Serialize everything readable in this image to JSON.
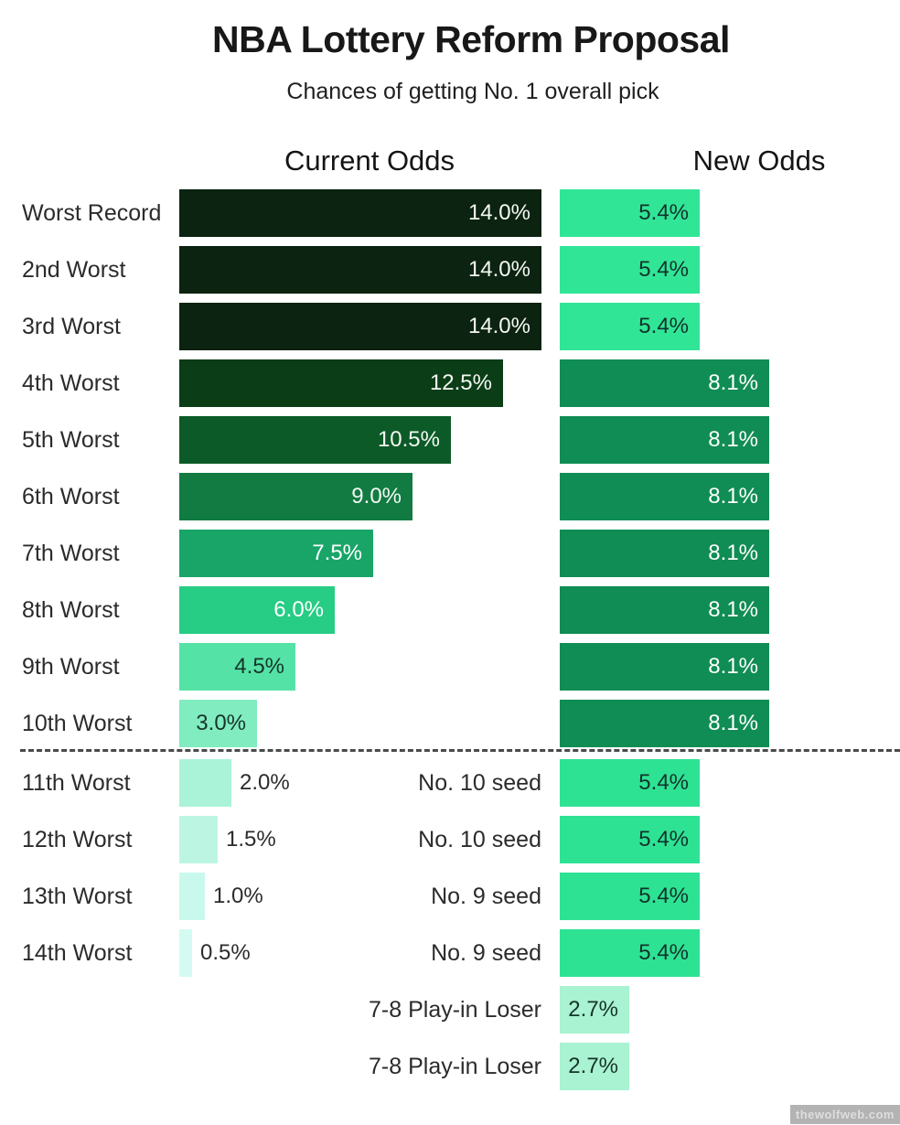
{
  "page": {
    "title": "NBA Lottery Reform Proposal",
    "subtitle": "Chances of getting No. 1 overall pick",
    "watermark": "thewolfweb.com"
  },
  "columns": {
    "current_header": "Current Odds",
    "new_header": "New Odds"
  },
  "chart_data": {
    "type": "bar",
    "orientation": "horizontal",
    "title": "NBA Lottery Reform Proposal",
    "subtitle": "Chances of getting No. 1 overall pick",
    "value_unit": "%",
    "value_labels_on_bars": true,
    "grid": false,
    "legend_position": "column headers",
    "x_range_pct": [
      0,
      14
    ],
    "divider_after_index": 9,
    "categories": [
      "Worst Record",
      "2nd Worst",
      "3rd Worst",
      "4th Worst",
      "5th Worst",
      "6th Worst",
      "7th Worst",
      "8th Worst",
      "9th Worst",
      "10th Worst",
      "11th Worst",
      "12th Worst",
      "13th Worst",
      "14th Worst",
      "7-8 Play-in Loser",
      "7-8 Play-in Loser"
    ],
    "series": [
      {
        "name": "Current Odds",
        "values": [
          14.0,
          14.0,
          14.0,
          12.5,
          10.5,
          9.0,
          7.5,
          6.0,
          4.5,
          3.0,
          2.0,
          1.5,
          1.0,
          0.5,
          null,
          null
        ]
      },
      {
        "name": "New Odds",
        "values": [
          5.4,
          5.4,
          5.4,
          8.1,
          8.1,
          8.1,
          8.1,
          8.1,
          8.1,
          8.1,
          5.4,
          5.4,
          5.4,
          5.4,
          2.7,
          2.7
        ]
      }
    ],
    "new_odds_slot_labels": [
      null,
      null,
      null,
      null,
      null,
      null,
      null,
      null,
      null,
      null,
      "No. 10 seed",
      "No. 10 seed",
      "No. 9 seed",
      "No. 9 seed",
      "7-8 Play-in Loser",
      "7-8 Play-in Loser"
    ],
    "rows": [
      {
        "label": "Worst Record",
        "mid": "",
        "current": {
          "value": 14.0,
          "text": "14.0%",
          "color": "#0b2310",
          "text_color": "#f4f8f3",
          "label_inside": true
        },
        "proposed": {
          "value": 5.4,
          "text": "5.4%",
          "color": "#31e597",
          "text_color": "#12322a"
        }
      },
      {
        "label": "2nd Worst",
        "mid": "",
        "current": {
          "value": 14.0,
          "text": "14.0%",
          "color": "#0b2310",
          "text_color": "#f4f8f3",
          "label_inside": true
        },
        "proposed": {
          "value": 5.4,
          "text": "5.4%",
          "color": "#31e597",
          "text_color": "#12322a"
        }
      },
      {
        "label": "3rd Worst",
        "mid": "",
        "current": {
          "value": 14.0,
          "text": "14.0%",
          "color": "#0b2310",
          "text_color": "#f4f8f3",
          "label_inside": true
        },
        "proposed": {
          "value": 5.4,
          "text": "5.4%",
          "color": "#31e597",
          "text_color": "#12322a"
        }
      },
      {
        "label": "4th Worst",
        "mid": "",
        "current": {
          "value": 12.5,
          "text": "12.5%",
          "color": "#0b3d17",
          "text_color": "#f4f8f3",
          "label_inside": true
        },
        "proposed": {
          "value": 8.1,
          "text": "8.1%",
          "color": "#108d54",
          "text_color": "#ffffff"
        }
      },
      {
        "label": "5th Worst",
        "mid": "",
        "current": {
          "value": 10.5,
          "text": "10.5%",
          "color": "#0c5a28",
          "text_color": "#f4f8f3",
          "label_inside": true
        },
        "proposed": {
          "value": 8.1,
          "text": "8.1%",
          "color": "#108d54",
          "text_color": "#ffffff"
        }
      },
      {
        "label": "6th Worst",
        "mid": "",
        "current": {
          "value": 9.0,
          "text": "9.0%",
          "color": "#117b42",
          "text_color": "#f4f8f3",
          "label_inside": true
        },
        "proposed": {
          "value": 8.1,
          "text": "8.1%",
          "color": "#108d54",
          "text_color": "#ffffff"
        }
      },
      {
        "label": "7th Worst",
        "mid": "",
        "current": {
          "value": 7.5,
          "text": "7.5%",
          "color": "#18a567",
          "text_color": "#ffffff",
          "label_inside": true
        },
        "proposed": {
          "value": 8.1,
          "text": "8.1%",
          "color": "#108d54",
          "text_color": "#ffffff"
        }
      },
      {
        "label": "8th Worst",
        "mid": "",
        "current": {
          "value": 6.0,
          "text": "6.0%",
          "color": "#27cc85",
          "text_color": "#ffffff",
          "label_inside": true
        },
        "proposed": {
          "value": 8.1,
          "text": "8.1%",
          "color": "#108d54",
          "text_color": "#ffffff"
        }
      },
      {
        "label": "9th Worst",
        "mid": "",
        "current": {
          "value": 4.5,
          "text": "4.5%",
          "color": "#55e2a6",
          "text_color": "#15352a",
          "label_inside": true
        },
        "proposed": {
          "value": 8.1,
          "text": "8.1%",
          "color": "#108d54",
          "text_color": "#ffffff"
        }
      },
      {
        "label": "10th Worst",
        "mid": "",
        "current": {
          "value": 3.0,
          "text": "3.0%",
          "color": "#81ecc0",
          "text_color": "#15352a",
          "label_inside": true
        },
        "proposed": {
          "value": 8.1,
          "text": "8.1%",
          "color": "#108d54",
          "text_color": "#ffffff"
        }
      },
      {
        "label": "11th Worst",
        "mid": "No. 10 seed",
        "current": {
          "value": 2.0,
          "text": "2.0%",
          "color": "#abf3d8",
          "text_color": "#2b2b2b",
          "label_inside": false
        },
        "proposed": {
          "value": 5.4,
          "text": "5.4%",
          "color": "#2ee294",
          "text_color": "#12322a"
        }
      },
      {
        "label": "12th Worst",
        "mid": "No. 10 seed",
        "current": {
          "value": 1.5,
          "text": "1.5%",
          "color": "#bcf6e2",
          "text_color": "#2b2b2b",
          "label_inside": false
        },
        "proposed": {
          "value": 5.4,
          "text": "5.4%",
          "color": "#2ee294",
          "text_color": "#12322a"
        }
      },
      {
        "label": "13th Worst",
        "mid": "No. 9 seed",
        "current": {
          "value": 1.0,
          "text": "1.0%",
          "color": "#c9f9ec",
          "text_color": "#2b2b2b",
          "label_inside": false
        },
        "proposed": {
          "value": 5.4,
          "text": "5.4%",
          "color": "#2ee294",
          "text_color": "#12322a"
        }
      },
      {
        "label": "14th Worst",
        "mid": "No. 9 seed",
        "current": {
          "value": 0.5,
          "text": "0.5%",
          "color": "#d4fbf2",
          "text_color": "#2b2b2b",
          "label_inside": false
        },
        "proposed": {
          "value": 5.4,
          "text": "5.4%",
          "color": "#2ee294",
          "text_color": "#12322a"
        }
      },
      {
        "label": "",
        "mid": "7-8 Play-in Loser",
        "current": null,
        "proposed": {
          "value": 2.7,
          "text": "2.7%",
          "color": "#a9f2d2",
          "text_color": "#15352a"
        }
      },
      {
        "label": "",
        "mid": "7-8 Play-in Loser",
        "current": null,
        "proposed": {
          "value": 2.7,
          "text": "2.7%",
          "color": "#a9f2d2",
          "text_color": "#15352a"
        }
      }
    ]
  }
}
